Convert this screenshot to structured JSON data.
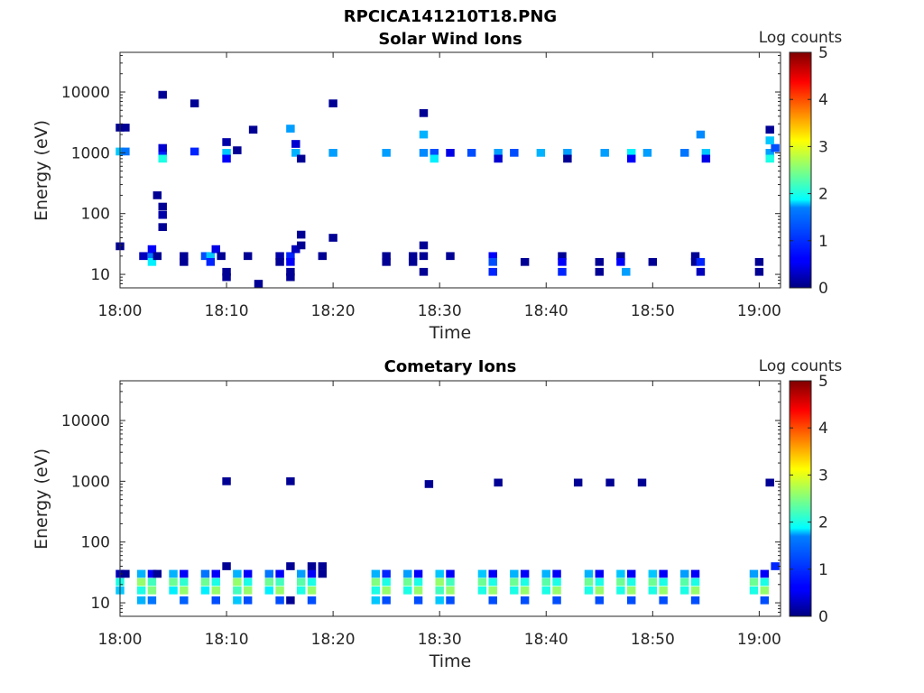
{
  "figure_title": "RPCICA141210T18.PNG",
  "chart_data": [
    {
      "type": "heatmap",
      "title": "Solar Wind Ions",
      "xlabel": "Time",
      "ylabel": "Energy (eV)",
      "xticks": [
        "18:00",
        "18:10",
        "18:20",
        "18:30",
        "18:40",
        "18:50",
        "19:00"
      ],
      "xlim": [
        "18:00",
        "19:02"
      ],
      "yscale": "log",
      "yticks": [
        10,
        100,
        1000,
        10000
      ],
      "ytick_labels": [
        "10",
        "100",
        "1000",
        "10000"
      ],
      "ylim": [
        6,
        45000
      ],
      "colorbar": {
        "label": "Log counts",
        "range": [
          0,
          5
        ],
        "ticks": [
          "0",
          "1",
          "2",
          "3",
          "4",
          "5"
        ],
        "colormap": "jet"
      },
      "cells": [
        [
          "18:00",
          1050,
          1.6
        ],
        [
          "18:00.5",
          1050,
          1.2
        ],
        [
          "18:00",
          2600,
          0.1
        ],
        [
          "18:00.5",
          2600,
          0.1
        ],
        [
          "18:00",
          29,
          0.1
        ],
        [
          "18:02.2",
          20,
          0.3
        ],
        [
          "18:03",
          20,
          1.2
        ],
        [
          "18:03",
          16,
          1.8
        ],
        [
          "18:03",
          26,
          0.6
        ],
        [
          "18:03.5",
          20,
          0.1
        ],
        [
          "18:04",
          1000,
          0.8
        ],
        [
          "18:04",
          800,
          2.0
        ],
        [
          "18:04",
          1200,
          0.4
        ],
        [
          "18:04",
          9000,
          0.1
        ],
        [
          "18:03.5",
          200,
          0.1
        ],
        [
          "18:04",
          130,
          0.1
        ],
        [
          "18:04",
          95,
          0.2
        ],
        [
          "18:04",
          60,
          0.1
        ],
        [
          "18:06",
          20,
          0.1
        ],
        [
          "18:06",
          16,
          0.1
        ],
        [
          "18:07",
          1050,
          0.8
        ],
        [
          "18:07",
          6500,
          0.1
        ],
        [
          "18:08",
          20,
          1.0
        ],
        [
          "18:08.5",
          20,
          1.6
        ],
        [
          "18:08.5",
          16,
          0.8
        ],
        [
          "18:09",
          26,
          0.5
        ],
        [
          "18:09.5",
          20,
          0.1
        ],
        [
          "18:10",
          11,
          0.1
        ],
        [
          "18:10",
          9,
          0.1
        ],
        [
          "18:10",
          1000,
          1.6
        ],
        [
          "18:10",
          800,
          0.6
        ],
        [
          "18:10",
          1500,
          0.2
        ],
        [
          "18:11",
          1100,
          0.1
        ],
        [
          "18:12",
          20,
          0.1
        ],
        [
          "18:13",
          7,
          0.1
        ],
        [
          "18:12.5",
          2400,
          0.1
        ],
        [
          "18:15",
          20,
          0.2
        ],
        [
          "18:15",
          16,
          0.1
        ],
        [
          "18:16",
          20,
          0.8
        ],
        [
          "18:16",
          16,
          0.6
        ],
        [
          "18:16.5",
          26,
          0.3
        ],
        [
          "18:16",
          11,
          0.1
        ],
        [
          "18:16",
          9,
          0.1
        ],
        [
          "18:16",
          2500,
          1.4
        ],
        [
          "18:16.5",
          1400,
          0.4
        ],
        [
          "18:16.5",
          1000,
          1.5
        ],
        [
          "18:17",
          800,
          0.1
        ],
        [
          "18:17",
          30,
          0.1
        ],
        [
          "18:17",
          45,
          0.1
        ],
        [
          "18:19",
          20,
          0.1
        ],
        [
          "18:20",
          1000,
          1.4
        ],
        [
          "18:20",
          6500,
          0.1
        ],
        [
          "18:20",
          40,
          0.1
        ],
        [
          "18:25",
          20,
          0.1
        ],
        [
          "18:25",
          16,
          0.1
        ],
        [
          "18:25",
          1000,
          1.4
        ],
        [
          "18:27.5",
          20,
          0.1
        ],
        [
          "18:27.5",
          16,
          0.1
        ],
        [
          "18:28.5",
          20,
          0.1
        ],
        [
          "18:28.5",
          30,
          0.1
        ],
        [
          "18:28.5",
          11,
          0.1
        ],
        [
          "18:28.5",
          1000,
          1.3
        ],
        [
          "18:28.5",
          2000,
          1.5
        ],
        [
          "18:28.5",
          4500,
          0.1
        ],
        [
          "18:29.5",
          1000,
          1.0
        ],
        [
          "18:29.5",
          800,
          1.8
        ],
        [
          "18:31",
          20,
          0.1
        ],
        [
          "18:31",
          1000,
          0.5
        ],
        [
          "18:33",
          1000,
          1.0
        ],
        [
          "18:35",
          20,
          0.6
        ],
        [
          "18:35",
          16,
          1.0
        ],
        [
          "18:35",
          11,
          0.8
        ],
        [
          "18:35.5",
          1000,
          1.4
        ],
        [
          "18:35.5",
          800,
          0.4
        ],
        [
          "18:37",
          1000,
          1.0
        ],
        [
          "18:38",
          16,
          0.1
        ],
        [
          "18:39.5",
          1000,
          1.5
        ],
        [
          "18:41.5",
          20,
          0.1
        ],
        [
          "18:41.5",
          16,
          0.6
        ],
        [
          "18:41.5",
          11,
          0.8
        ],
        [
          "18:42",
          1000,
          1.4
        ],
        [
          "18:42",
          800,
          0.1
        ],
        [
          "18:45",
          16,
          0.1
        ],
        [
          "18:45",
          11,
          0.1
        ],
        [
          "18:45.5",
          1000,
          1.4
        ],
        [
          "18:47",
          20,
          0.1
        ],
        [
          "18:47",
          16,
          0.6
        ],
        [
          "18:47.5",
          11,
          1.4
        ],
        [
          "18:48",
          1000,
          1.8
        ],
        [
          "18:48",
          800,
          0.6
        ],
        [
          "18:49.5",
          1000,
          1.4
        ],
        [
          "18:50",
          16,
          0.1
        ],
        [
          "18:53",
          1000,
          1.2
        ],
        [
          "18:54",
          20,
          0.1
        ],
        [
          "18:54",
          16,
          0.1
        ],
        [
          "18:54.5",
          16,
          0.8
        ],
        [
          "18:54.5",
          11,
          0.3
        ],
        [
          "18:54.5",
          2000,
          1.3
        ],
        [
          "18:55",
          1000,
          1.6
        ],
        [
          "18:55",
          800,
          0.5
        ],
        [
          "19:00",
          16,
          0.1
        ],
        [
          "19:00",
          11,
          0.1
        ],
        [
          "19:01",
          1000,
          1.4
        ],
        [
          "19:01",
          800,
          2.0
        ],
        [
          "19:01",
          2400,
          0.1
        ],
        [
          "19:01.5",
          1200,
          1.0
        ],
        [
          "19:01",
          1600,
          1.6
        ]
      ]
    },
    {
      "type": "heatmap",
      "title": "Cometary Ions",
      "xlabel": "Time",
      "ylabel": "Energy (eV)",
      "xticks": [
        "18:00",
        "18:10",
        "18:20",
        "18:30",
        "18:40",
        "18:50",
        "19:00"
      ],
      "xlim": [
        "18:00",
        "19:02"
      ],
      "yscale": "log",
      "yticks": [
        10,
        100,
        1000,
        10000
      ],
      "ytick_labels": [
        "10",
        "100",
        "1000",
        "10000"
      ],
      "ylim": [
        6,
        45000
      ],
      "colorbar": {
        "label": "Log counts",
        "range": [
          0,
          5
        ],
        "ticks": [
          "0",
          "1",
          "2",
          "3",
          "4",
          "5"
        ],
        "colormap": "jet"
      },
      "cells": [
        [
          "18:00",
          30,
          0.3
        ],
        [
          "18:00",
          22,
          2.0
        ],
        [
          "18:00",
          16,
          1.6
        ],
        [
          "18:00.5",
          30,
          0.1
        ],
        [
          "18:02",
          30,
          1.5
        ],
        [
          "18:02",
          22,
          2.6
        ],
        [
          "18:02",
          16,
          2.0
        ],
        [
          "18:02",
          11,
          1.5
        ],
        [
          "18:03",
          30,
          0.6
        ],
        [
          "18:03",
          22,
          2.2
        ],
        [
          "18:03",
          16,
          2.5
        ],
        [
          "18:03",
          11,
          1.2
        ],
        [
          "18:03.5",
          30,
          0.1
        ],
        [
          "18:05",
          30,
          1.5
        ],
        [
          "18:05",
          22,
          2.4
        ],
        [
          "18:05",
          16,
          1.8
        ],
        [
          "18:06",
          30,
          0.6
        ],
        [
          "18:06",
          22,
          2.1
        ],
        [
          "18:06",
          16,
          2.6
        ],
        [
          "18:06",
          11,
          1.1
        ],
        [
          "18:08",
          30,
          1.2
        ],
        [
          "18:08",
          22,
          2.4
        ],
        [
          "18:08",
          16,
          1.8
        ],
        [
          "18:09",
          30,
          0.6
        ],
        [
          "18:09",
          22,
          2.0
        ],
        [
          "18:09",
          16,
          2.6
        ],
        [
          "18:09",
          11,
          1.0
        ],
        [
          "18:10",
          40,
          0.1
        ],
        [
          "18:10",
          1000,
          0.1
        ],
        [
          "18:11",
          30,
          1.5
        ],
        [
          "18:11",
          22,
          2.6
        ],
        [
          "18:11",
          16,
          2.2
        ],
        [
          "18:11",
          11,
          1.6
        ],
        [
          "18:12",
          30,
          0.6
        ],
        [
          "18:12",
          22,
          2.0
        ],
        [
          "18:12",
          16,
          2.6
        ],
        [
          "18:12",
          11,
          1.0
        ],
        [
          "18:14",
          30,
          1.2
        ],
        [
          "18:14",
          22,
          2.4
        ],
        [
          "18:14",
          16,
          1.8
        ],
        [
          "18:15",
          30,
          0.6
        ],
        [
          "18:15",
          22,
          2.2
        ],
        [
          "18:15",
          16,
          2.6
        ],
        [
          "18:15",
          11,
          1.0
        ],
        [
          "18:16",
          1000,
          0.1
        ],
        [
          "18:16",
          40,
          0.1
        ],
        [
          "18:16",
          11,
          0.1
        ],
        [
          "18:17",
          30,
          1.4
        ],
        [
          "18:17",
          22,
          2.3
        ],
        [
          "18:17",
          16,
          2.0
        ],
        [
          "18:18",
          30,
          0.6
        ],
        [
          "18:18",
          22,
          2.0
        ],
        [
          "18:18",
          16,
          2.6
        ],
        [
          "18:18",
          11,
          1.0
        ],
        [
          "18:18",
          40,
          0.1
        ],
        [
          "18:19",
          40,
          0.1
        ],
        [
          "18:19",
          30,
          0.1
        ],
        [
          "18:24",
          30,
          1.5
        ],
        [
          "18:24",
          22,
          2.5
        ],
        [
          "18:24",
          16,
          2.0
        ],
        [
          "18:24",
          11,
          1.6
        ],
        [
          "18:25",
          30,
          0.8
        ],
        [
          "18:25",
          22,
          2.0
        ],
        [
          "18:25",
          16,
          2.6
        ],
        [
          "18:25",
          11,
          1.0
        ],
        [
          "18:27",
          30,
          1.4
        ],
        [
          "18:27",
          22,
          2.4
        ],
        [
          "18:27",
          16,
          2.0
        ],
        [
          "18:28",
          30,
          0.6
        ],
        [
          "18:28",
          22,
          2.0
        ],
        [
          "18:28",
          16,
          2.6
        ],
        [
          "18:28",
          11,
          1.0
        ],
        [
          "18:29",
          900,
          0.1
        ],
        [
          "18:30",
          30,
          1.6
        ],
        [
          "18:30",
          22,
          2.6
        ],
        [
          "18:30",
          16,
          2.2
        ],
        [
          "18:30",
          11,
          1.6
        ],
        [
          "18:31",
          30,
          0.6
        ],
        [
          "18:31",
          22,
          2.2
        ],
        [
          "18:31",
          16,
          2.6
        ],
        [
          "18:31",
          11,
          1.0
        ],
        [
          "18:34",
          30,
          1.6
        ],
        [
          "18:34",
          22,
          2.4
        ],
        [
          "18:34",
          16,
          2.0
        ],
        [
          "18:35",
          30,
          0.6
        ],
        [
          "18:35",
          22,
          2.0
        ],
        [
          "18:35",
          16,
          2.6
        ],
        [
          "18:35",
          11,
          1.0
        ],
        [
          "18:35.5",
          950,
          0.1
        ],
        [
          "18:37",
          30,
          1.5
        ],
        [
          "18:37",
          22,
          2.4
        ],
        [
          "18:37",
          16,
          2.0
        ],
        [
          "18:38",
          30,
          0.6
        ],
        [
          "18:38",
          22,
          2.0
        ],
        [
          "18:38",
          16,
          2.6
        ],
        [
          "18:38",
          11,
          1.0
        ],
        [
          "18:40",
          30,
          1.5
        ],
        [
          "18:40",
          22,
          2.3
        ],
        [
          "18:40",
          16,
          2.0
        ],
        [
          "18:41",
          30,
          0.6
        ],
        [
          "18:41",
          22,
          2.0
        ],
        [
          "18:41",
          16,
          2.6
        ],
        [
          "18:41",
          11,
          1.0
        ],
        [
          "18:43",
          950,
          0.1
        ],
        [
          "18:44",
          30,
          1.5
        ],
        [
          "18:44",
          22,
          2.4
        ],
        [
          "18:44",
          16,
          2.0
        ],
        [
          "18:45",
          30,
          0.6
        ],
        [
          "18:45",
          22,
          2.0
        ],
        [
          "18:45",
          16,
          2.6
        ],
        [
          "18:45",
          11,
          1.0
        ],
        [
          "18:46",
          950,
          0.1
        ],
        [
          "18:47",
          30,
          1.6
        ],
        [
          "18:47",
          22,
          2.4
        ],
        [
          "18:47",
          16,
          2.0
        ],
        [
          "18:48",
          30,
          0.6
        ],
        [
          "18:48",
          22,
          2.0
        ],
        [
          "18:48",
          16,
          2.6
        ],
        [
          "18:48",
          11,
          1.0
        ],
        [
          "18:49",
          950,
          0.1
        ],
        [
          "18:50",
          30,
          1.6
        ],
        [
          "18:50",
          22,
          2.4
        ],
        [
          "18:50",
          16,
          2.0
        ],
        [
          "18:51",
          30,
          0.6
        ],
        [
          "18:51",
          22,
          2.0
        ],
        [
          "18:51",
          16,
          2.6
        ],
        [
          "18:51",
          11,
          1.0
        ],
        [
          "18:53",
          30,
          1.4
        ],
        [
          "18:53",
          22,
          2.3
        ],
        [
          "18:53",
          16,
          2.0
        ],
        [
          "18:54",
          30,
          0.6
        ],
        [
          "18:54",
          22,
          2.0
        ],
        [
          "18:54",
          16,
          2.6
        ],
        [
          "18:54",
          11,
          1.0
        ],
        [
          "18:59.5",
          30,
          1.4
        ],
        [
          "18:59.5",
          22,
          2.4
        ],
        [
          "18:59.5",
          16,
          2.0
        ],
        [
          "19:00.5",
          30,
          0.6
        ],
        [
          "19:00.5",
          22,
          2.0
        ],
        [
          "19:00.5",
          16,
          2.6
        ],
        [
          "19:00.5",
          11,
          1.0
        ],
        [
          "19:01",
          950,
          0.1
        ],
        [
          "19:01.5",
          40,
          0.8
        ]
      ]
    }
  ]
}
